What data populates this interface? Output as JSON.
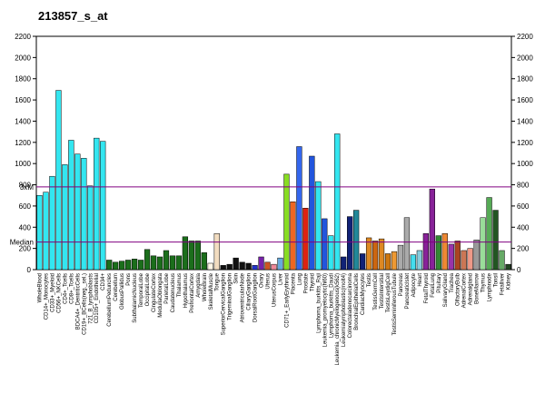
{
  "chart_data": {
    "type": "bar",
    "title": "213857_s_at",
    "ylim": [
      0,
      2200
    ],
    "yticks": [
      0,
      200,
      400,
      600,
      800,
      1000,
      1200,
      1400,
      1600,
      1800,
      2000,
      2200
    ],
    "reference_lines": [
      {
        "label": "3xM",
        "value": 780,
        "color": "#800080"
      },
      {
        "label": "Median",
        "value": 260,
        "color": "#800080"
      }
    ],
    "categories": [
      "WholeBlood",
      "CD14+_Monocytes",
      "CD33+_Myeloid",
      "CD56+_NKCells",
      "CD4+_Tcells",
      "CD8+_Tcells",
      "BDCA4+_DentriticCells",
      "CD19+_BCells(neg._sel.)",
      "721_B_lymphoblasts",
      "CD105+_Endothelial",
      "CD34+",
      "CerebellumPeduncles",
      "Cerebellum",
      "GlobusPallidus",
      "Pons",
      "SubthalamicNucleus",
      "TemporalLobe",
      "OccipitalLobe",
      "CingulateCortex",
      "MedullaOblongata",
      "ParietalLobe",
      "Caudatenucleus",
      "Thalamus",
      "Hypothalamus",
      "PrefrontalCortex",
      "Amygdala",
      "WholeBrain",
      "SkeletalMuscle",
      "Tongue",
      "SuperiorCervicalGanglion",
      "TrigeminalGanglion",
      "Skin",
      "AtrioventricularNode",
      "CiliaryGanglion",
      "DorsalRootGanglion",
      "Ovary",
      "Uterus",
      "UterusCorpus",
      "Liver",
      "CD71+_EarlyErythroid",
      "Placenta",
      "Lung",
      "Prostate",
      "Thyroid",
      "Lymphoma_burkitts_Raji",
      "Leukemia_promyelocytic(hl60)",
      "Lymphoma_burkitts_Daudi",
      "Leukemia_chronicMyelogenous(k562)",
      "Leukemialymphoblastic(molt4)",
      "Colorectaladenocarcinoma",
      "BronchialEpithelialCells",
      "CardiacMyocytes",
      "Testis",
      "TestisGermCell",
      "TestisIntersitial",
      "TestisLeydigCell",
      "TestisSeminiferousTubule",
      "Pancreas",
      "PancreaticIslet",
      "Adipocyte",
      "Heart",
      "FetalThyroid",
      "FetalLung",
      "Pituitary",
      "SalivaryGland",
      "Trachea",
      "OlfactoryBulb",
      "AdrenalCortex",
      "Adrenalgland",
      "BoneMarrow",
      "Thymus",
      "Lymphnode",
      "Tonsil",
      "Fetalliver",
      "Kidney"
    ],
    "values": [
      700,
      730,
      880,
      1690,
      990,
      1220,
      1090,
      1050,
      790,
      1240,
      1210,
      90,
      70,
      80,
      90,
      100,
      90,
      190,
      130,
      120,
      180,
      130,
      130,
      310,
      270,
      270,
      160,
      60,
      340,
      40,
      50,
      110,
      70,
      60,
      40,
      120,
      70,
      50,
      110,
      900,
      640,
      1160,
      580,
      1070,
      830,
      480,
      320,
      1280,
      120,
      500,
      560,
      150,
      300,
      270,
      290,
      150,
      170,
      230,
      490,
      140,
      180,
      340,
      760,
      320,
      340,
      240,
      270,
      180,
      200,
      280,
      490,
      680,
      560,
      180,
      50
    ],
    "colors": [
      "#33e6f0",
      "#33e6f0",
      "#33e6f0",
      "#33e6f0",
      "#33e6f0",
      "#33e6f0",
      "#33e6f0",
      "#33e6f0",
      "#33e6f0",
      "#33e6f0",
      "#33e6f0",
      "#1b6e1b",
      "#1b6e1b",
      "#1b6e1b",
      "#1b6e1b",
      "#1b6e1b",
      "#1b6e1b",
      "#1b6e1b",
      "#1b6e1b",
      "#1b6e1b",
      "#1b6e1b",
      "#1b6e1b",
      "#1b6e1b",
      "#1b6e1b",
      "#1b6e1b",
      "#1b6e1b",
      "#1b6e1b",
      "#fff6e6",
      "#f2dcc0",
      "#111111",
      "#111111",
      "#111111",
      "#111111",
      "#111111",
      "#2233cc",
      "#7722aa",
      "#cc5522",
      "#ee8899",
      "#66aadd",
      "#88dd22",
      "#ee6622",
      "#3366ee",
      "#dd2211",
      "#2255dd",
      "#33e6f0",
      "#2255dd",
      "#33e6f0",
      "#33e6f0",
      "#112277",
      "#112277",
      "#228899",
      "#112277",
      "#dd8822",
      "#cc6611",
      "#dd8822",
      "#cc7711",
      "#ee9933",
      "#aaaaaa",
      "#aaaaaa",
      "#44ddee",
      "#88ccdd",
      "#882299",
      "#882299",
      "#338833",
      "#ee8833",
      "#9933aa",
      "#aa4422",
      "#cc7755",
      "#ee9988",
      "#999999",
      "#99dd99",
      "#55aa55",
      "#225522",
      "#66aa66",
      "#224422"
    ]
  }
}
